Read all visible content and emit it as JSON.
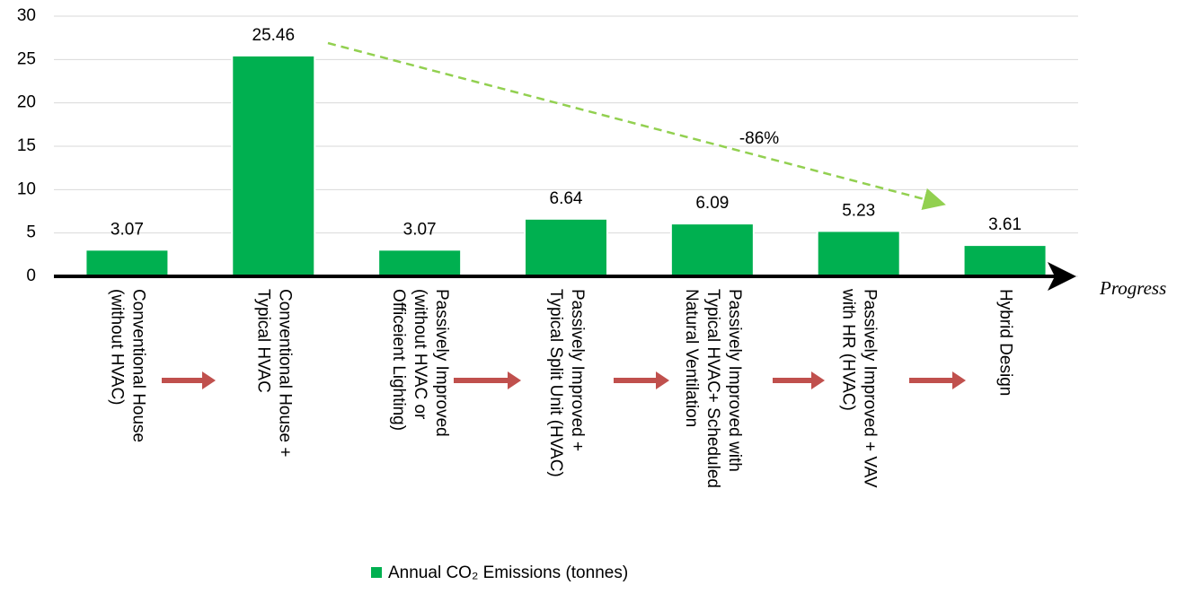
{
  "chart_data": {
    "type": "bar",
    "categories": [
      "Conventional House\n(without HVAC)",
      "Conventional House +\nTypical HVAC",
      "Passively Improved\n(without HVAC or\nOfficeient Lighting)",
      "Passively Improved  +\nTypical Split Unit (HVAC)",
      "Passively Improved with\nTypical HVAC+ Scheduled\nNatural Ventilation",
      "Passively Improved + VAV\nwith HR (HVAC)",
      "Hybrid Design"
    ],
    "series": [
      {
        "name": "Annual CO₂ Emissions (tonnes)",
        "color": "#00b050",
        "values": [
          3.07,
          25.46,
          3.07,
          6.64,
          6.09,
          5.23,
          3.61
        ]
      }
    ],
    "ylim": [
      0,
      30
    ],
    "yticks": [
      0,
      5,
      10,
      15,
      20,
      25,
      30
    ],
    "grid": true,
    "x_label": "Progress",
    "annotation": "-86%",
    "legend": "bottom"
  }
}
